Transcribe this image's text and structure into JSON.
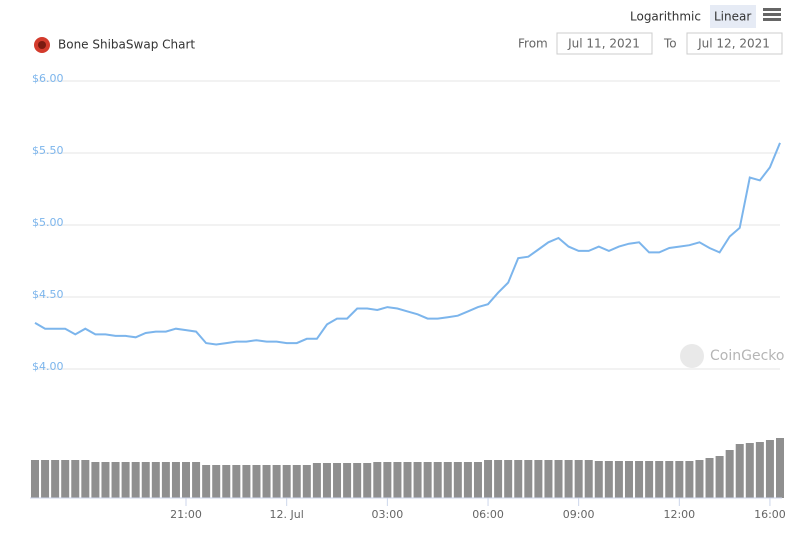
{
  "chart_data": {
    "type": "line",
    "title": "Bone ShibaSwap Chart",
    "scale_options": [
      "Logarithmic",
      "Linear"
    ],
    "log_scale": false,
    "from_label": "From",
    "from_date": "Jul 11, 2021",
    "to_label": "To",
    "to_date": "Jul 12, 2021",
    "watermark": "CoinGecko",
    "color": "#7cb5ec",
    "volume_color": "#8f8f8f",
    "grid": true,
    "ylim": [
      4,
      6
    ],
    "yticks": [
      {
        "value": 6,
        "label": "$6.00"
      },
      {
        "value": 5.5,
        "label": "$5.50"
      },
      {
        "value": 5,
        "label": "$5.00"
      },
      {
        "value": 4.5,
        "label": "$4.50"
      },
      {
        "value": 4,
        "label": "$4.00"
      }
    ],
    "categories": [
      null,
      null,
      null,
      null,
      null,
      null,
      null,
      null,
      null,
      null,
      null,
      null,
      null,
      null,
      null,
      "21:00",
      null,
      null,
      null,
      null,
      null,
      null,
      null,
      null,
      null,
      "12. Jul",
      null,
      null,
      null,
      null,
      null,
      null,
      null,
      null,
      null,
      "03:00",
      null,
      null,
      null,
      null,
      null,
      null,
      null,
      null,
      null,
      "06:00",
      null,
      null,
      null,
      null,
      null,
      null,
      null,
      null,
      "09:00",
      null,
      null,
      null,
      null,
      null,
      null,
      null,
      null,
      null,
      "12:00",
      null,
      null,
      null,
      null,
      null,
      null,
      null,
      null,
      "16:00",
      null
    ],
    "values": [
      4.32,
      4.28,
      4.28,
      4.28,
      4.24,
      4.28,
      4.24,
      4.24,
      4.23,
      4.23,
      4.22,
      4.25,
      4.26,
      4.26,
      4.28,
      4.27,
      4.26,
      4.18,
      4.17,
      4.18,
      4.19,
      4.19,
      4.2,
      4.19,
      4.19,
      4.18,
      4.18,
      4.21,
      4.21,
      4.31,
      4.35,
      4.35,
      4.42,
      4.42,
      4.41,
      4.43,
      4.42,
      4.4,
      4.38,
      4.35,
      4.35,
      4.36,
      4.37,
      4.4,
      4.43,
      4.45,
      4.53,
      4.6,
      4.77,
      4.78,
      4.83,
      4.88,
      4.91,
      4.85,
      4.82,
      4.82,
      4.85,
      4.82,
      4.85,
      4.87,
      4.88,
      4.81,
      4.81,
      4.84,
      4.85,
      4.86,
      4.88,
      4.84,
      4.81,
      4.92,
      4.98,
      5.33,
      5.31,
      5.4,
      5.57
    ],
    "volumes": [
      38,
      38,
      38,
      38,
      38,
      38,
      36,
      36,
      36,
      36,
      36,
      36,
      36,
      36,
      36,
      36,
      36,
      33,
      33,
      33,
      33,
      33,
      33,
      33,
      33,
      33,
      33,
      33,
      35,
      35,
      35,
      35,
      35,
      35,
      36,
      36,
      36,
      36,
      36,
      36,
      36,
      36,
      36,
      36,
      36,
      38,
      38,
      38,
      38,
      38,
      38,
      38,
      38,
      38,
      38,
      38,
      37,
      37,
      37,
      37,
      37,
      37,
      37,
      37,
      37,
      37,
      38,
      40,
      42,
      48,
      54,
      55,
      56,
      58,
      60
    ]
  }
}
